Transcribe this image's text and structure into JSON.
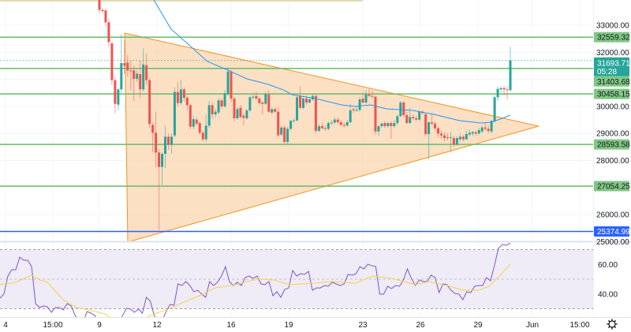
{
  "chart_data": {
    "type": "candlestick",
    "interval_note": "",
    "colors": {
      "up": "#26a69a",
      "down": "#ef5350",
      "level": "#66bb6a",
      "level_tag": "#81c784",
      "support_blue": "#2962ff",
      "triangle_fill": "#fbd5b0",
      "triangle_stroke": "#f7931a",
      "ma": "#2196f3",
      "rsi": "#7e57c2",
      "rsi_ma": "#f5d33f",
      "rsi_band": "#efebf7",
      "current": "#26a69a"
    },
    "candles_ohlc": [
      [
        33933,
        34000,
        33450,
        33564
      ],
      [
        33564,
        33650,
        33450,
        33525
      ],
      [
        33544,
        33600,
        32950,
        33107
      ],
      [
        33107,
        33250,
        32200,
        32378
      ],
      [
        32329,
        32400,
        30800,
        30968
      ],
      [
        30968,
        31100,
        29754,
        30094
      ],
      [
        30065,
        30700,
        29850,
        30628
      ],
      [
        30628,
        32670,
        30500,
        31600
      ],
      [
        31600,
        32450,
        31200,
        31500
      ],
      [
        31620,
        31900,
        31100,
        31328
      ],
      [
        31328,
        31700,
        30600,
        31310
      ],
      [
        31328,
        31500,
        30200,
        31017
      ],
      [
        31017,
        31350,
        30900,
        31211
      ],
      [
        31192,
        31700,
        30300,
        30628
      ],
      [
        30628,
        32150,
        30550,
        31552
      ],
      [
        31523,
        31950,
        30800,
        30968
      ],
      [
        30968,
        31050,
        29200,
        29345
      ],
      [
        29316,
        29400,
        28300,
        29024
      ],
      [
        29024,
        29800,
        27750,
        28295
      ],
      [
        28295,
        28400,
        25430,
        27761
      ],
      [
        27761,
        28300,
        27080,
        28247
      ],
      [
        28247,
        29300,
        27720,
        28879
      ],
      [
        28879,
        29000,
        28400,
        28587
      ],
      [
        28587,
        29000,
        28250,
        28879
      ],
      [
        28927,
        30700,
        28850,
        30531
      ],
      [
        30531,
        30900,
        30000,
        30123
      ],
      [
        30123,
        30980,
        30050,
        30628
      ],
      [
        30628,
        30700,
        30200,
        30317
      ],
      [
        30317,
        30400,
        29900,
        30045
      ],
      [
        30045,
        30100,
        29150,
        29248
      ],
      [
        29248,
        29650,
        29150,
        29530
      ],
      [
        29510,
        29600,
        29300,
        29365
      ],
      [
        29384,
        29450,
        28950,
        29024
      ],
      [
        29024,
        29100,
        28700,
        28782
      ],
      [
        28782,
        29700,
        28700,
        29287
      ],
      [
        29287,
        30200,
        29200,
        30045
      ],
      [
        30045,
        30150,
        29550,
        29705
      ],
      [
        29705,
        29900,
        29600,
        29802
      ],
      [
        29773,
        30300,
        29700,
        30220
      ],
      [
        30220,
        30300,
        29900,
        29997
      ],
      [
        29997,
        30600,
        29950,
        30483
      ],
      [
        30453,
        31440,
        30400,
        31289
      ],
      [
        31289,
        31350,
        30150,
        30288
      ],
      [
        30288,
        30350,
        29450,
        29559
      ],
      [
        29559,
        30000,
        29500,
        29899
      ],
      [
        29948,
        30050,
        29550,
        29608
      ],
      [
        29656,
        29750,
        29300,
        29578
      ],
      [
        29559,
        29900,
        29500,
        29850
      ],
      [
        29850,
        30400,
        29800,
        30337
      ],
      [
        30337,
        30450,
        30250,
        30357
      ],
      [
        30385,
        30550,
        30250,
        30288
      ],
      [
        30288,
        30350,
        30050,
        30123
      ],
      [
        30143,
        30200,
        29700,
        30094
      ],
      [
        30094,
        30550,
        30050,
        30453
      ],
      [
        30434,
        30600,
        29750,
        29802
      ],
      [
        29773,
        29950,
        29700,
        29899
      ],
      [
        29899,
        29950,
        29750,
        29802
      ],
      [
        29802,
        29950,
        28850,
        28928
      ],
      [
        28957,
        29300,
        28900,
        29219
      ],
      [
        29219,
        29300,
        28600,
        28685
      ],
      [
        28685,
        29250,
        28600,
        29171
      ],
      [
        29171,
        29500,
        29100,
        29462
      ],
      [
        29462,
        29550,
        29400,
        29480
      ],
      [
        29480,
        30400,
        29450,
        30337
      ],
      [
        30385,
        30750,
        29900,
        29948
      ],
      [
        29948,
        30350,
        29900,
        30289
      ],
      [
        30289,
        30400,
        30050,
        30143
      ],
      [
        30143,
        30350,
        30100,
        30260
      ],
      [
        30260,
        30450,
        30200,
        30385
      ],
      [
        30385,
        30450,
        29000,
        29093
      ],
      [
        29093,
        29350,
        29050,
        29268
      ],
      [
        29268,
        29400,
        29150,
        29190
      ],
      [
        29190,
        29300,
        29100,
        29170
      ],
      [
        29170,
        29450,
        29100,
        29385
      ],
      [
        29385,
        29500,
        29300,
        29400
      ],
      [
        29400,
        29600,
        29350,
        29511
      ],
      [
        29511,
        29600,
        29350,
        29414
      ],
      [
        29414,
        29500,
        29250,
        29316
      ],
      [
        29316,
        29400,
        29200,
        29290
      ],
      [
        29290,
        29500,
        29250,
        29414
      ],
      [
        29414,
        30100,
        29380,
        29851
      ],
      [
        29890,
        29950,
        29750,
        29851
      ],
      [
        29851,
        30000,
        29800,
        29870
      ],
      [
        29870,
        30350,
        29800,
        30259
      ],
      [
        30289,
        30500,
        30100,
        30143
      ],
      [
        30143,
        30600,
        30100,
        30434
      ],
      [
        30434,
        30650,
        30350,
        30385
      ],
      [
        30385,
        30600,
        30300,
        30356
      ],
      [
        30356,
        30400,
        28950,
        29073
      ],
      [
        29073,
        29300,
        28900,
        29268
      ],
      [
        29268,
        29400,
        29200,
        29365
      ],
      [
        29385,
        29450,
        29200,
        29268
      ],
      [
        29268,
        29420,
        29200,
        29385
      ],
      [
        29385,
        29450,
        28800,
        29268
      ],
      [
        29268,
        29500,
        29200,
        29385
      ],
      [
        29385,
        29700,
        29300,
        29637
      ],
      [
        29637,
        30200,
        29600,
        30143
      ],
      [
        30143,
        30200,
        29600,
        29676
      ],
      [
        29676,
        29800,
        29350,
        29385
      ],
      [
        29385,
        29950,
        29350,
        29608
      ],
      [
        29608,
        29700,
        29500,
        29560
      ],
      [
        29560,
        29650,
        29450,
        29511
      ],
      [
        29511,
        29850,
        29450,
        29802
      ],
      [
        29802,
        29850,
        29700,
        29754
      ],
      [
        29705,
        29750,
        28900,
        28976
      ],
      [
        28976,
        29450,
        28053,
        29414
      ],
      [
        29414,
        29750,
        29300,
        29365
      ],
      [
        29365,
        29450,
        29100,
        29190
      ],
      [
        29190,
        29250,
        28850,
        28996
      ],
      [
        28996,
        29100,
        28800,
        28928
      ],
      [
        28928,
        29050,
        28700,
        28830
      ],
      [
        28860,
        29000,
        28750,
        28830
      ],
      [
        28830,
        29050,
        28300,
        28860
      ],
      [
        28830,
        28900,
        28500,
        28587
      ],
      [
        28587,
        28900,
        28550,
        28830
      ],
      [
        28782,
        29000,
        28700,
        28879
      ],
      [
        28879,
        28950,
        28700,
        28782
      ],
      [
        28782,
        29100,
        28750,
        28976
      ],
      [
        28957,
        29150,
        28900,
        29025
      ],
      [
        28996,
        29100,
        28900,
        29054
      ],
      [
        29044,
        29100,
        28900,
        28996
      ],
      [
        28996,
        29200,
        28950,
        29122
      ],
      [
        29074,
        29300,
        29000,
        29219
      ],
      [
        29219,
        29400,
        29100,
        29171
      ],
      [
        29171,
        29300,
        29000,
        29093
      ],
      [
        29073,
        29500,
        29000,
        29462
      ],
      [
        29462,
        30400,
        29400,
        30337
      ],
      [
        30337,
        30750,
        30200,
        30648
      ],
      [
        30629,
        30750,
        30500,
        30677
      ],
      [
        30677,
        30750,
        30400,
        30629
      ],
      [
        30629,
        30750,
        30250,
        30600
      ],
      [
        30600,
        32200,
        30550,
        31694
      ]
    ],
    "moving_average": [
      [
        11.84,
        33933
      ],
      [
        12.73,
        32863
      ],
      [
        13.89,
        32134
      ],
      [
        14.63,
        31659
      ],
      [
        15.6,
        31368
      ],
      [
        16.69,
        31018
      ],
      [
        17.8,
        30814
      ],
      [
        18.62,
        30600
      ],
      [
        19.03,
        30435
      ],
      [
        20.26,
        30289
      ],
      [
        21.62,
        30055
      ],
      [
        22.32,
        29998
      ],
      [
        23.14,
        30055
      ],
      [
        23.96,
        29910
      ],
      [
        25.32,
        29852
      ],
      [
        26.43,
        29706
      ],
      [
        27.78,
        29473
      ],
      [
        28.89,
        29385
      ],
      [
        29.43,
        29415
      ],
      [
        30.0,
        29560
      ],
      [
        30.41,
        29677
      ]
    ],
    "triangle": {
      "top_left": [
        10.32,
        32708
      ],
      "bottom_left": [
        10.48,
        24985
      ],
      "apex": [
        31.89,
        29269
      ]
    },
    "levels": [
      {
        "price": 32559.32,
        "label": "32559.32",
        "color": "#66bb6a"
      },
      {
        "price": 31403.68,
        "label": "31403.68",
        "color": "#66bb6a"
      },
      {
        "price": 30458.15,
        "label": "30458.15",
        "color": "#66bb6a"
      },
      {
        "price": 28593.58,
        "label": "28593.58",
        "color": "#66bb6a"
      },
      {
        "price": 27054.25,
        "label": "27054.25",
        "color": "#66bb6a"
      },
      {
        "price": 25374.99,
        "label": "25374.99",
        "color": "#2962ff"
      }
    ],
    "current_price": {
      "price": 31693.71,
      "label": "31693.71",
      "countdown": "05:28"
    },
    "price_axis": {
      "ticks": [
        33000,
        32000,
        30000,
        29000,
        28000,
        26000,
        25000
      ],
      "labels": [
        "33000.00",
        "32000.00",
        "30000.00",
        "29000.00",
        "28000.00",
        "26000.00",
        "25000.00"
      ]
    },
    "rsi": {
      "values": [
        37.2,
        39.9,
        52.1,
        56.4,
        56.4,
        64.9,
        62.8,
        62.8,
        58.5,
        33.5,
        30.8,
        31.9,
        31.3,
        27.6,
        30.8,
        30.8,
        29.2,
        33.5,
        31.9,
        25.5,
        22,
        21,
        28.1,
        27,
        25.5,
        20,
        18,
        17,
        16,
        18,
        20,
        25.5,
        30.3,
        29.7,
        27.6,
        29.7,
        27,
        37.7,
        35.1,
        25.5,
        20,
        22,
        28.1,
        32.9,
        32.4,
        46.8,
        45.7,
        48.4,
        45.7,
        41.5,
        42.5,
        39.9,
        37.7,
        48.4,
        45.7,
        47.9,
        52.1,
        58.5,
        48.4,
        45.7,
        47.9,
        45.7,
        51.1,
        52.1,
        50.5,
        52.1,
        46.8,
        46.3,
        48.4,
        38.8,
        41.5,
        37.7,
        43.1,
        44.1,
        55.9,
        52.1,
        53.7,
        53.2,
        55.3,
        42.5,
        44.1,
        44.1,
        45.7,
        45.2,
        47.9,
        46.8,
        45.7,
        46.8,
        53.2,
        52.7,
        53.7,
        58.5,
        56.9,
        60.1,
        59.1,
        58.5,
        39.9,
        39.9,
        45.2,
        43.6,
        45.7,
        45.2,
        49.5,
        56.9,
        50.5,
        45.7,
        49.5,
        48.4,
        48.4,
        52.7,
        51.1,
        40.9,
        46.8,
        46.3,
        42.5,
        40.4,
        39.9,
        36.1,
        41.5,
        40.9,
        45.2,
        45.7,
        45.7,
        51.1,
        48.9,
        59.1,
        70.8,
        73.5,
        72.9,
        74.5
      ],
      "ma": [
        [
          3.82,
          46.3
        ],
        [
          4.64,
          47.9
        ],
        [
          5.47,
          52.7
        ],
        [
          5.88,
          49.5
        ],
        [
          6.29,
          47.9
        ],
        [
          7.11,
          36.1
        ],
        [
          7.81,
          30.8
        ],
        [
          8.47,
          29.2
        ],
        [
          9.29,
          26.5
        ],
        [
          9.78,
          22
        ],
        [
          11.01,
          20
        ],
        [
          11.63,
          25.5
        ],
        [
          12.58,
          29.7
        ],
        [
          13.4,
          34.5
        ],
        [
          14.22,
          38.8
        ],
        [
          15.04,
          44.1
        ],
        [
          15.86,
          45.7
        ],
        [
          16.69,
          48.4
        ],
        [
          17.26,
          50
        ],
        [
          18.08,
          49.5
        ],
        [
          18.91,
          46.3
        ],
        [
          20.26,
          47.3
        ],
        [
          21.08,
          48.4
        ],
        [
          22.32,
          47.3
        ],
        [
          23.26,
          52.1
        ],
        [
          24.25,
          50.5
        ],
        [
          25.48,
          46.3
        ],
        [
          26.14,
          48.4
        ],
        [
          27.13,
          45.7
        ],
        [
          27.95,
          42.5
        ],
        [
          28.77,
          42.5
        ],
        [
          29.3,
          45.2
        ],
        [
          29.84,
          52.1
        ],
        [
          30.41,
          60.1
        ]
      ],
      "bands": [
        70,
        50,
        30
      ],
      "axis_labels": [
        "60.00",
        "40.00"
      ]
    },
    "x_axis": {
      "labels": [
        "4",
        "15:00",
        "9",
        "12",
        "16",
        "19",
        "23",
        "26",
        "29",
        "Jun",
        "15:00"
      ]
    }
  },
  "toolbar": {
    "settings_icon": "gear-icon"
  }
}
